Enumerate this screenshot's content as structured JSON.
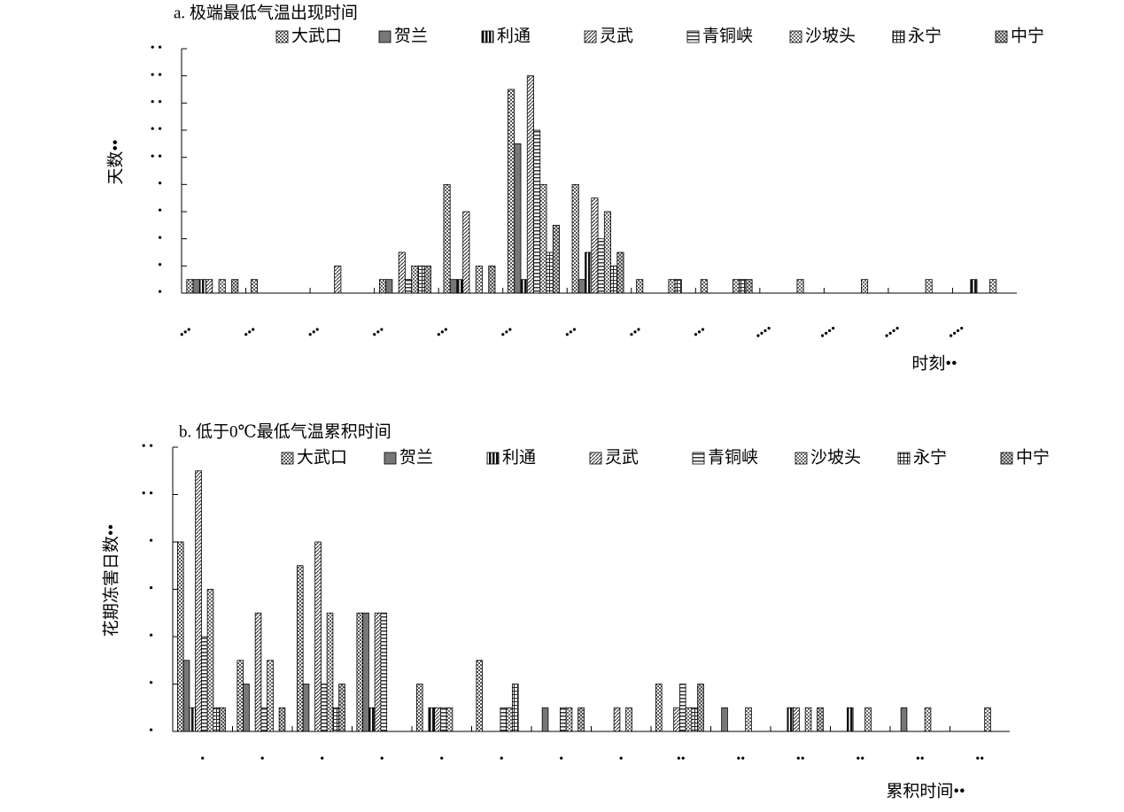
{
  "chart_data": [
    {
      "type": "bar",
      "title": "a. 极端最低气温出现时间",
      "x_label": "时刻••",
      "y_label": "天数••",
      "legend": "top",
      "categories": [
        "•••",
        "•••",
        "•••",
        "•••",
        "•••",
        "•••",
        "•••",
        "•••",
        "•••",
        "••••",
        "••••",
        "••••",
        "••••"
      ],
      "ylim": [
        0,
        18
      ],
      "yticks": [
        {
          "value": 0,
          "label": "•"
        },
        {
          "value": 2,
          "label": "•"
        },
        {
          "value": 4,
          "label": "•"
        },
        {
          "value": 6,
          "label": "•"
        },
        {
          "value": 8,
          "label": "•"
        },
        {
          "value": 10,
          "label": "• •"
        },
        {
          "value": 12,
          "label": "• •"
        },
        {
          "value": 14,
          "label": "• •"
        },
        {
          "value": 16,
          "label": "• •"
        },
        {
          "value": 18,
          "label": "• •"
        }
      ],
      "series": [
        {
          "name": "大武口",
          "color": "#555555",
          "values": [
            1,
            1,
            0,
            1,
            8,
            15,
            8,
            1,
            1,
            0,
            0,
            0,
            0
          ]
        },
        {
          "name": "贺兰",
          "color": "#777777",
          "values": [
            1,
            0,
            0,
            1,
            1,
            11,
            1,
            0,
            0,
            0,
            0,
            0,
            0
          ]
        },
        {
          "name": "利通",
          "color": "#111111",
          "values": [
            1,
            0,
            0,
            0,
            1,
            1,
            3,
            0,
            0,
            0,
            0,
            0,
            1
          ]
        },
        {
          "name": "灵武",
          "color": "#222222",
          "values": [
            1,
            0,
            2,
            3,
            6,
            16,
            7,
            0,
            0,
            0,
            0,
            0,
            0
          ]
        },
        {
          "name": "青铜峡",
          "color": "#333333",
          "values": [
            0,
            0,
            0,
            1,
            0,
            12,
            4,
            0,
            0,
            0,
            0,
            0,
            0
          ]
        },
        {
          "name": "沙坡头",
          "color": "#666666",
          "values": [
            1,
            0,
            0,
            2,
            2,
            8,
            6,
            1,
            1,
            1,
            1,
            1,
            1
          ]
        },
        {
          "name": "永宁",
          "color": "#222222",
          "values": [
            0,
            0,
            0,
            2,
            0,
            3,
            2,
            1,
            1,
            0,
            0,
            0,
            0
          ]
        },
        {
          "name": "中宁",
          "color": "#444444",
          "values": [
            1,
            0,
            0,
            2,
            2,
            5,
            3,
            0,
            1,
            0,
            0,
            0,
            0
          ]
        }
      ]
    },
    {
      "type": "bar",
      "title": "b. 低于0℃最低气温累积时间",
      "x_label": "累积时间••",
      "y_label": "花期冻害日数••",
      "legend": "top",
      "categories": [
        "•",
        "•",
        "•",
        "•",
        "•",
        "•",
        "•",
        "•",
        "••",
        "••",
        "••",
        "••",
        "••",
        "••"
      ],
      "ylim": [
        0,
        12
      ],
      "yticks": [
        {
          "value": 0,
          "label": "•"
        },
        {
          "value": 2,
          "label": "•"
        },
        {
          "value": 4,
          "label": "•"
        },
        {
          "value": 6,
          "label": "•"
        },
        {
          "value": 8,
          "label": "•"
        },
        {
          "value": 10,
          "label": "• •"
        },
        {
          "value": 12,
          "label": "• •"
        }
      ],
      "series": [
        {
          "name": "大武口",
          "color": "#555555",
          "values": [
            8,
            3,
            7,
            5,
            2,
            3,
            0,
            0,
            2,
            0,
            0,
            0,
            0,
            0
          ]
        },
        {
          "name": "贺兰",
          "color": "#777777",
          "values": [
            3,
            2,
            2,
            5,
            0,
            0,
            1,
            0,
            0,
            1,
            0,
            0,
            1,
            0
          ]
        },
        {
          "name": "利通",
          "color": "#111111",
          "values": [
            1,
            0,
            0,
            1,
            1,
            0,
            0,
            0,
            0,
            0,
            1,
            1,
            0,
            0
          ]
        },
        {
          "name": "灵武",
          "color": "#222222",
          "values": [
            11,
            5,
            8,
            5,
            1,
            0,
            0,
            1,
            1,
            0,
            1,
            0,
            0,
            0
          ]
        },
        {
          "name": "青铜峡",
          "color": "#333333",
          "values": [
            4,
            1,
            2,
            5,
            1,
            1,
            1,
            0,
            2,
            0,
            0,
            0,
            0,
            0
          ]
        },
        {
          "name": "沙坡头",
          "color": "#666666",
          "values": [
            6,
            3,
            5,
            0,
            1,
            1,
            1,
            1,
            1,
            1,
            1,
            1,
            1,
            1
          ]
        },
        {
          "name": "永宁",
          "color": "#222222",
          "values": [
            1,
            0,
            1,
            0,
            0,
            2,
            0,
            0,
            1,
            0,
            0,
            0,
            0,
            0
          ]
        },
        {
          "name": "中宁",
          "color": "#444444",
          "values": [
            1,
            1,
            2,
            0,
            0,
            0,
            1,
            0,
            2,
            0,
            1,
            0,
            0,
            0
          ]
        }
      ]
    }
  ]
}
